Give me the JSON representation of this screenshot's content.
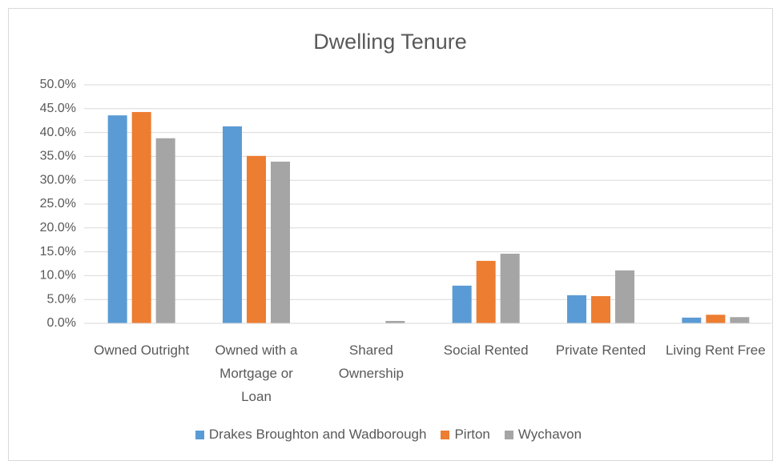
{
  "chart_data": {
    "type": "bar",
    "title": "Dwelling Tenure",
    "categories": [
      "Owned Outright",
      "Owned with a Mortgage or Loan",
      "Shared Ownership",
      "Social Rented",
      "Private Rented",
      "Living Rent Free"
    ],
    "series": [
      {
        "name": "Drakes Broughton and Wadborough",
        "color": "#5b9bd5",
        "values": [
          43.6,
          41.3,
          0,
          7.9,
          5.9,
          1.2
        ]
      },
      {
        "name": "Pirton",
        "color": "#ed7d31",
        "values": [
          44.3,
          35.1,
          0,
          13.1,
          5.7,
          1.8
        ]
      },
      {
        "name": "Wychavon",
        "color": "#a5a5a5",
        "values": [
          38.8,
          33.9,
          0.5,
          14.6,
          11.1,
          1.3
        ]
      }
    ],
    "ylim": [
      0,
      50
    ],
    "yticks": [
      {
        "value": 0,
        "label": "0.0%"
      },
      {
        "value": 5,
        "label": "5.0%"
      },
      {
        "value": 10,
        "label": "10.0%"
      },
      {
        "value": 15,
        "label": "15.0%"
      },
      {
        "value": 20,
        "label": "20.0%"
      },
      {
        "value": 25,
        "label": "25.0%"
      },
      {
        "value": 30,
        "label": "30.0%"
      },
      {
        "value": 35,
        "label": "35.0%"
      },
      {
        "value": 40,
        "label": "40.0%"
      },
      {
        "value": 45,
        "label": "45.0%"
      },
      {
        "value": 50,
        "label": "50.0%"
      }
    ],
    "grid": true,
    "legend": "bottom"
  }
}
